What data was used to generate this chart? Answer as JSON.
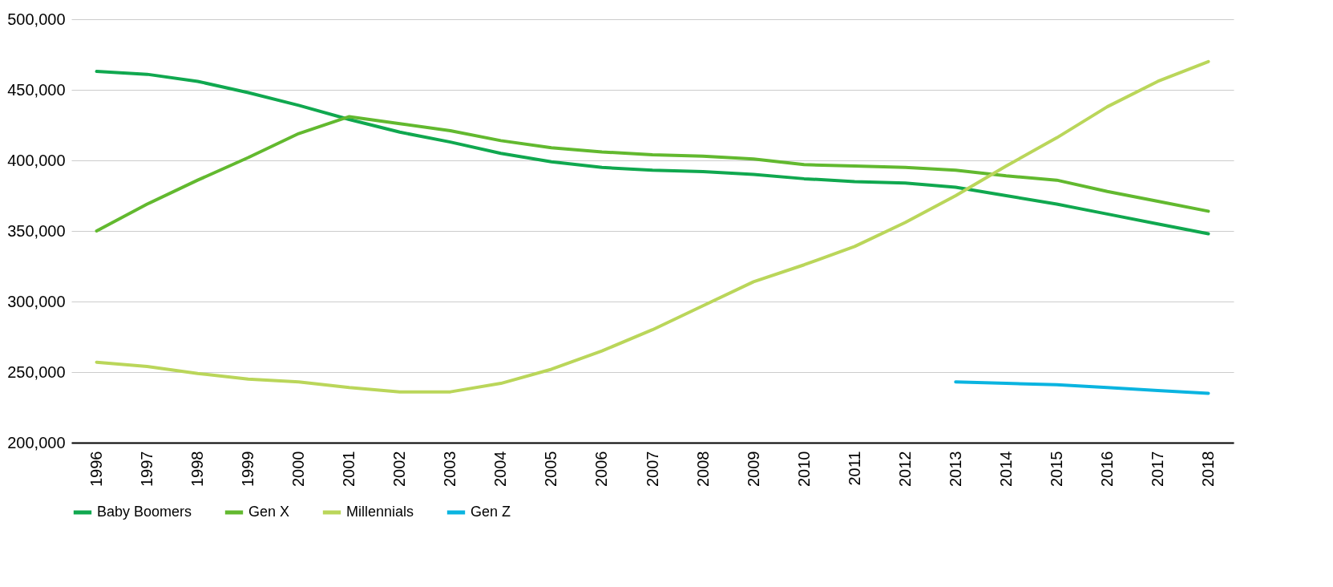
{
  "chart_data": {
    "type": "line",
    "categories": [
      "1996",
      "1997",
      "1998",
      "1999",
      "2000",
      "2001",
      "2002",
      "2003",
      "2004",
      "2005",
      "2006",
      "2007",
      "2008",
      "2009",
      "2010",
      "2011",
      "2012",
      "2013",
      "2014",
      "2015",
      "2016",
      "2017",
      "2018"
    ],
    "series": [
      {
        "name": "Baby Boomers",
        "color": "#10a84f",
        "values": [
          463000,
          461000,
          456000,
          448000,
          439000,
          429000,
          420000,
          413000,
          405000,
          399000,
          395000,
          393000,
          392000,
          390000,
          387000,
          385000,
          384000,
          381000,
          375000,
          369000,
          362000,
          355000,
          348000
        ]
      },
      {
        "name": "Gen X",
        "color": "#62b92f",
        "values": [
          350000,
          369000,
          386000,
          402000,
          419000,
          431000,
          426000,
          421000,
          414000,
          409000,
          406000,
          404000,
          403000,
          401000,
          397000,
          396000,
          395000,
          393000,
          389000,
          386000,
          378000,
          371000,
          364000
        ]
      },
      {
        "name": "Millennials",
        "color": "#bad65a",
        "values": [
          257000,
          254000,
          249000,
          245000,
          243000,
          239000,
          236000,
          236000,
          242000,
          252000,
          265000,
          280000,
          297000,
          314000,
          326000,
          339000,
          356000,
          375000,
          396000,
          416000,
          438000,
          456000,
          470000
        ]
      },
      {
        "name": "Gen Z",
        "color": "#0ab4e0",
        "values": [
          null,
          null,
          null,
          null,
          null,
          null,
          null,
          null,
          null,
          null,
          null,
          null,
          null,
          null,
          null,
          null,
          null,
          243000,
          242000,
          241000,
          239000,
          237000,
          235000
        ]
      }
    ],
    "ylim": [
      200000,
      500000
    ],
    "yticks": [
      {
        "value": 200000,
        "label": "200,000"
      },
      {
        "value": 250000,
        "label": "250,000"
      },
      {
        "value": 300000,
        "label": "300,000"
      },
      {
        "value": 350000,
        "label": "350,000"
      },
      {
        "value": 400000,
        "label": "400,000"
      },
      {
        "value": 450000,
        "label": "450,000"
      },
      {
        "value": 500000,
        "label": "500,000"
      }
    ],
    "grid": "y",
    "legend": "bottom",
    "marker": "none",
    "line_style": "solid"
  }
}
